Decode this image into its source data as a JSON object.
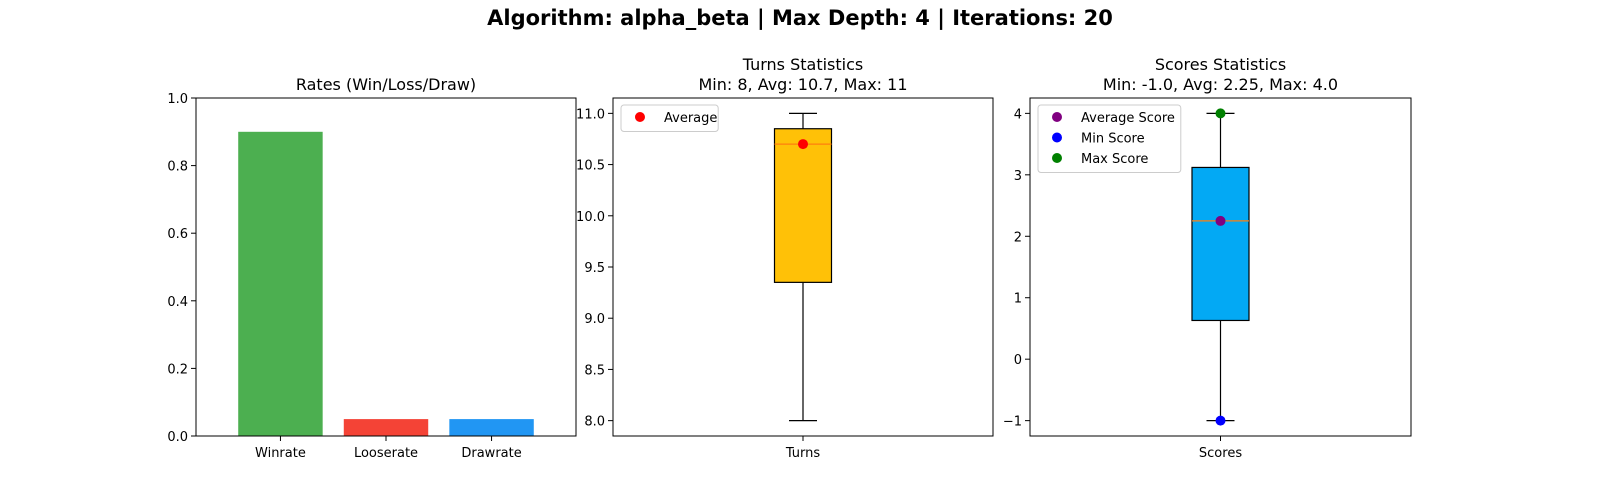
{
  "suptitle": "Algorithm: alpha_beta | Max Depth: 4 | Iterations: 20",
  "chart_data": [
    {
      "type": "bar",
      "title": "Rates (Win/Loss/Draw)",
      "categories": [
        "Winrate",
        "Looserate",
        "Drawrate"
      ],
      "values": [
        0.9,
        0.05,
        0.05
      ],
      "colors": [
        "#4caf50",
        "#f44336",
        "#2196f3"
      ],
      "ylim": [
        0,
        1.0
      ],
      "yticks": [
        "0.0",
        "0.2",
        "0.4",
        "0.6",
        "0.8",
        "1.0"
      ],
      "grid": false
    },
    {
      "type": "box",
      "title": "Turns Statistics",
      "subtitle": "Min: 8, Avg: 10.7, Max: 11",
      "category": "Turns",
      "box": {
        "whislo": 8.0,
        "q1": 9.35,
        "med": 10.7,
        "q3": 10.85,
        "whishi": 11.0
      },
      "box_color": "#ffc107",
      "median_color": "#ff7f0e",
      "markers": [
        {
          "name": "Average",
          "value": 10.7,
          "color": "#ff0000"
        }
      ],
      "ylim": [
        7.85,
        11.15
      ],
      "yticks": [
        "8.0",
        "8.5",
        "9.0",
        "9.5",
        "10.0",
        "10.5",
        "11.0"
      ],
      "legend": [
        "Average"
      ],
      "legend_position": "top-left",
      "grid": false
    },
    {
      "type": "box",
      "title": "Scores Statistics",
      "subtitle": "Min: -1.0, Avg: 2.25, Max: 4.0",
      "category": "Scores",
      "box": {
        "whislo": -1.0,
        "q1": 0.63,
        "med": 2.25,
        "q3": 3.12,
        "whishi": 4.0
      },
      "box_color": "#03a9f4",
      "median_color": "#ff7f0e",
      "markers": [
        {
          "name": "Average Score",
          "value": 2.25,
          "color": "#800080"
        },
        {
          "name": "Min Score",
          "value": -1.0,
          "color": "#0000ff"
        },
        {
          "name": "Max Score",
          "value": 4.0,
          "color": "#008000"
        }
      ],
      "ylim": [
        -1.25,
        4.25
      ],
      "yticks": [
        "−1",
        "0",
        "1",
        "2",
        "3",
        "4"
      ],
      "legend": [
        "Average Score",
        "Min Score",
        "Max Score"
      ],
      "legend_position": "top-left",
      "grid": false
    }
  ]
}
